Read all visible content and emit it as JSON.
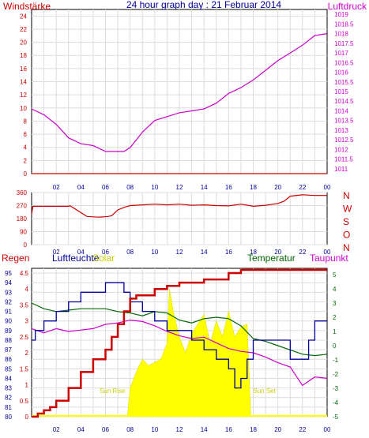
{
  "title": "24 hour graph day : 21 Februar 2014",
  "colors": {
    "frame": "#000000",
    "grid": "#dcdcdc",
    "red": "#cc0000",
    "magenta": "#cc00cc",
    "blue": "#000099",
    "green": "#006600",
    "yellow": "#ffff00",
    "olive": "#cccc00"
  },
  "x_ticks": [
    "02",
    "04",
    "06",
    "08",
    "10",
    "12",
    "14",
    "16",
    "18",
    "20",
    "22",
    "00"
  ],
  "chart_data": [
    {
      "type": "line",
      "name_left": "Windstärke",
      "name_right": "Luftdruck",
      "left_ticks": [
        "0",
        "2",
        "4",
        "6",
        "8",
        "10",
        "12",
        "14",
        "16",
        "18",
        "20",
        "22",
        "24"
      ],
      "right_ticks": [
        "1011",
        "1011.5",
        "1012",
        "1012.5",
        "1013",
        "1013.5",
        "1014",
        "1014.5",
        "1015",
        "1015.5",
        "1016",
        "1016.5",
        "1017",
        "1017.5",
        "1018",
        "1018.5",
        "1019"
      ],
      "ylim_left": [
        0,
        25
      ],
      "ylim_right": [
        1010.75,
        1019.25
      ],
      "series": [
        {
          "name": "Windstärke",
          "color": "red",
          "x": [
            0,
            24
          ],
          "y": [
            0,
            0
          ]
        },
        {
          "name": "Luftdruck",
          "color": "magenta",
          "x": [
            0,
            1,
            2,
            3,
            4,
            5,
            6,
            7,
            7.5,
            8,
            9,
            10,
            11,
            12,
            13,
            14,
            15,
            16,
            17,
            18,
            19,
            20,
            21,
            22,
            23,
            24
          ],
          "y": [
            1014.1,
            1013.8,
            1013.3,
            1012.6,
            1012.3,
            1012.2,
            1011.9,
            1011.9,
            1011.9,
            1012.1,
            1012.9,
            1013.5,
            1013.7,
            1013.9,
            1014.0,
            1014.1,
            1014.4,
            1014.9,
            1015.2,
            1015.6,
            1016.1,
            1016.6,
            1017.0,
            1017.4,
            1017.9,
            1018.0
          ]
        }
      ]
    },
    {
      "type": "line",
      "name": "",
      "left_ticks": [
        "0",
        "90",
        "180",
        "270",
        "360"
      ],
      "right_ticks": [
        "N",
        "W",
        "S",
        "O",
        "N"
      ],
      "ylim": [
        0,
        360
      ],
      "series": [
        {
          "name": "",
          "color": "red",
          "x": [
            0,
            0.1,
            1.5,
            3.0,
            3.1,
            4.5,
            5.5,
            6.2,
            6.5,
            7,
            7.6,
            8,
            9,
            10,
            11,
            12,
            13,
            14,
            15,
            16,
            17,
            18,
            19,
            20,
            20.5,
            21,
            22,
            23,
            24
          ],
          "y": [
            210,
            265,
            265,
            265,
            270,
            195,
            190,
            195,
            200,
            240,
            260,
            270,
            275,
            280,
            275,
            280,
            272,
            275,
            270,
            268,
            280,
            265,
            272,
            285,
            300,
            335,
            345,
            340,
            340
          ]
        }
      ]
    },
    {
      "type": "line",
      "name_labels": [
        "Regen",
        "Luftfeuchte",
        "Solar",
        "Temperatur",
        "Taupunkt"
      ],
      "left_ticks_humidity": [
        "80",
        "81",
        "82",
        "83",
        "84",
        "85",
        "86",
        "87",
        "88",
        "89",
        "90",
        "91",
        "92",
        "93",
        "94",
        "95"
      ],
      "left_ticks_rain": [
        "0",
        "0.5",
        "1",
        "1.5",
        "2",
        "2.5",
        "3",
        "3.5",
        "4",
        "4.5"
      ],
      "right_ticks_temp": [
        "-5",
        "-4",
        "-3",
        "-2",
        "-1",
        "0",
        "1",
        "2",
        "3",
        "4",
        "5"
      ],
      "ylim_humidity": [
        80,
        95.5
      ],
      "ylim_rain": [
        0,
        4.5
      ],
      "ylim_temp": [
        -5,
        5
      ],
      "annotations": [
        "Sun Rise",
        "Sun Set"
      ],
      "series": [
        {
          "name": "Regen",
          "color": "red",
          "x": [
            0,
            0.5,
            1,
            1.5,
            2,
            3,
            4,
            5,
            6,
            6.5,
            7,
            7.5,
            8,
            8.5,
            9,
            10,
            11,
            12,
            13,
            14,
            15,
            16,
            17,
            18,
            19,
            20,
            21,
            22,
            23,
            24
          ],
          "y": [
            0,
            0.1,
            0.2,
            0.3,
            0.5,
            0.9,
            1.4,
            1.8,
            2.1,
            2.5,
            2.9,
            3.3,
            3.7,
            3.8,
            3.8,
            4.0,
            4.1,
            4.2,
            4.2,
            4.3,
            4.3,
            4.5,
            4.6,
            4.6,
            4.6,
            4.6,
            4.6,
            4.6,
            4.6,
            4.6
          ]
        },
        {
          "name": "Luftfeuchte",
          "color": "blue",
          "x": [
            0,
            0.3,
            1,
            2,
            3,
            4,
            5,
            6,
            7,
            7.5,
            8,
            9,
            10,
            11,
            12,
            13,
            14,
            15,
            16,
            16.5,
            17,
            17.5,
            18,
            19,
            20,
            21,
            22,
            22.5,
            23,
            24
          ],
          "y": [
            88,
            89,
            90,
            91,
            92,
            93,
            93,
            94,
            94,
            93,
            92,
            91,
            90,
            89,
            89,
            88,
            87,
            86,
            85,
            83,
            84,
            86,
            88,
            88,
            88,
            86,
            86,
            88,
            90,
            90
          ]
        },
        {
          "name": "Temperatur",
          "color": "green",
          "x": [
            0,
            1,
            2,
            3,
            4,
            5,
            6,
            7,
            8,
            9,
            10,
            11,
            12,
            13,
            14,
            15,
            16,
            17,
            18,
            19,
            20,
            21,
            22,
            23,
            24
          ],
          "y": [
            3.0,
            2.6,
            2.4,
            2.5,
            2.6,
            2.6,
            2.6,
            2.4,
            2.3,
            2.1,
            2.4,
            2.3,
            1.8,
            1.6,
            1.9,
            2.0,
            1.9,
            1.4,
            0.5,
            0.3,
            0.0,
            -0.3,
            -0.6,
            -0.7,
            -0.6
          ]
        },
        {
          "name": "Taupunkt",
          "color": "magenta",
          "x": [
            0,
            1,
            2,
            3,
            4,
            5,
            6,
            7,
            8,
            9,
            10,
            11,
            12,
            13,
            14,
            15,
            16,
            17,
            18,
            19,
            20,
            21,
            22,
            23,
            24
          ],
          "y": [
            1.2,
            0.9,
            1.2,
            1.0,
            1.1,
            1.2,
            1.5,
            1.6,
            1.8,
            1.7,
            1.4,
            1.0,
            0.7,
            0.5,
            0.6,
            0.2,
            -0.2,
            -0.4,
            -0.5,
            -0.8,
            -1.2,
            -1.5,
            -2.8,
            -2.2,
            -2.3
          ]
        },
        {
          "name": "Solar",
          "color": "yellow",
          "x": [
            7.8,
            8,
            8.5,
            9,
            9.5,
            10,
            10.5,
            11,
            11.2,
            11.5,
            12,
            12.5,
            13,
            13.5,
            14,
            14.5,
            15,
            15.5,
            16,
            16.5,
            17,
            17.5,
            17.8
          ],
          "y": [
            0.1,
            0.9,
            1.4,
            1.8,
            1.6,
            1.7,
            1.8,
            2.3,
            4.0,
            3.3,
            2.5,
            2.0,
            2.6,
            2.9,
            3.2,
            2.3,
            3.0,
            2.5,
            3.3,
            2.5,
            2.8,
            2.9,
            0
          ]
        }
      ]
    }
  ]
}
